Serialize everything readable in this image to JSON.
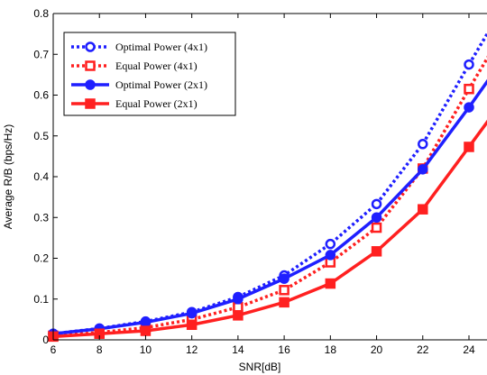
{
  "chart_data": {
    "type": "line",
    "title": "",
    "xlabel": "SNR[dB]",
    "ylabel": "Average R/B (bps/Hz)",
    "xlim": [
      6,
      25
    ],
    "ylim": [
      0,
      0.8
    ],
    "xticks": [
      6,
      8,
      10,
      12,
      14,
      16,
      18,
      20,
      22,
      24
    ],
    "yticks": [
      0,
      0.1,
      0.2,
      0.3,
      0.4,
      0.5,
      0.6,
      0.7,
      0.8
    ],
    "grid": false,
    "legend_position": "top-left",
    "series": [
      {
        "name": "Optimal Power (4x1)",
        "color": "#1f1fff",
        "line": "dotted",
        "marker": "circle-open",
        "x": [
          6,
          8,
          10,
          12,
          14,
          16,
          18,
          20,
          22,
          24,
          25
        ],
        "y": [
          0.015,
          0.028,
          0.045,
          0.068,
          0.105,
          0.158,
          0.235,
          0.333,
          0.48,
          0.675,
          0.77
        ]
      },
      {
        "name": "Equal Power (4x1)",
        "color": "#ff2020",
        "line": "dotted",
        "marker": "square-open",
        "x": [
          6,
          8,
          10,
          12,
          14,
          16,
          18,
          20,
          22,
          24,
          25
        ],
        "y": [
          0.01,
          0.018,
          0.03,
          0.05,
          0.08,
          0.122,
          0.19,
          0.275,
          0.42,
          0.615,
          0.71
        ]
      },
      {
        "name": "Optimal Power (2x1)",
        "color": "#1f1fff",
        "line": "solid",
        "marker": "circle-filled",
        "x": [
          6,
          8,
          10,
          12,
          14,
          16,
          18,
          20,
          22,
          24,
          25
        ],
        "y": [
          0.015,
          0.027,
          0.043,
          0.065,
          0.1,
          0.15,
          0.208,
          0.3,
          0.418,
          0.57,
          0.65
        ]
      },
      {
        "name": "Equal Power (2x1)",
        "color": "#ff2020",
        "line": "solid",
        "marker": "square-filled",
        "x": [
          6,
          8,
          10,
          12,
          14,
          16,
          18,
          20,
          22,
          24,
          25
        ],
        "y": [
          0.008,
          0.015,
          0.022,
          0.037,
          0.06,
          0.092,
          0.138,
          0.217,
          0.32,
          0.473,
          0.55
        ]
      }
    ]
  }
}
